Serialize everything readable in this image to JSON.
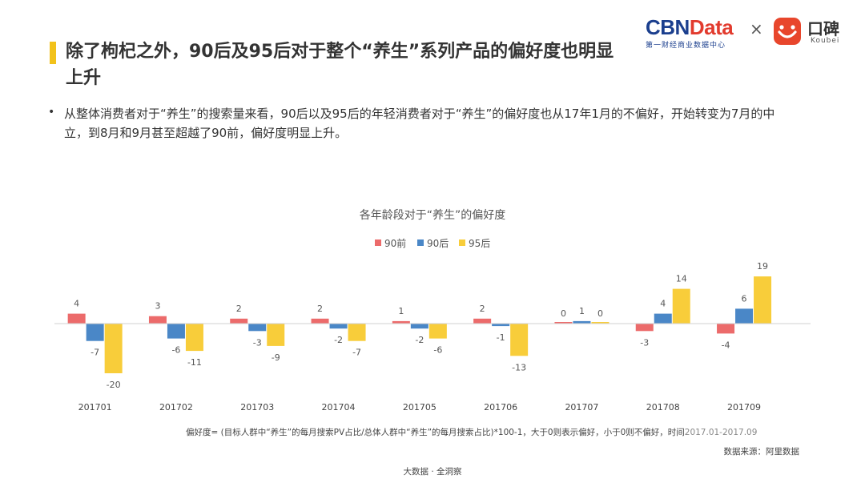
{
  "header": {
    "title": "除了枸杞之外，90后及95后对于整个“养生”系列产品的偏好度也明显上升",
    "logo_cbn_blue": "CBN",
    "logo_cbn_red": "Data",
    "logo_cbn_sub": "第一财经商业数据中心",
    "logo_separator": "×",
    "logo_koubei_name": "口碑",
    "logo_koubei_sub": "Koubei"
  },
  "bullet": {
    "marker": "•",
    "text": "从整体消费者对于“养生”的搜索量来看，90后以及95后的年轻消费者对于“养生”的偏好度也从17年1月的不偏好，开始转变为7月的中立，到8月和9月甚至超越了90前，偏好度明显上升。"
  },
  "chart_data": {
    "type": "bar",
    "title": "各年龄段对于“养生”的偏好度",
    "categories": [
      "201701",
      "201702",
      "201703",
      "201704",
      "201705",
      "201706",
      "201707",
      "201708",
      "201709"
    ],
    "series": [
      {
        "name": "90前",
        "color": "#ec6b6b",
        "values": [
          4,
          3,
          2,
          2,
          1,
          2,
          0,
          -3,
          -4
        ]
      },
      {
        "name": "90后",
        "color": "#4a87c7",
        "values": [
          -7,
          -6,
          -3,
          -2,
          -2,
          -1,
          1,
          4,
          6
        ]
      },
      {
        "name": "95后",
        "color": "#f8cd3a",
        "values": [
          -20,
          -11,
          -9,
          -7,
          -6,
          -13,
          0,
          14,
          19
        ]
      }
    ],
    "xlabel": "",
    "ylabel": "",
    "ylim": [
      -20,
      19
    ],
    "legend": "top-center",
    "grid": false
  },
  "notes": {
    "formula_main": "偏好度= (目标人群中“养生”的每月搜索PV占比/总体人群中“养生”的每月搜索占比)*100-1，大于0则表示偏好，小于0则不偏好，时间",
    "formula_period": "2017.01-2017.09",
    "source": "数据来源：阿里数据",
    "footer": "大数据 · 全洞察"
  }
}
